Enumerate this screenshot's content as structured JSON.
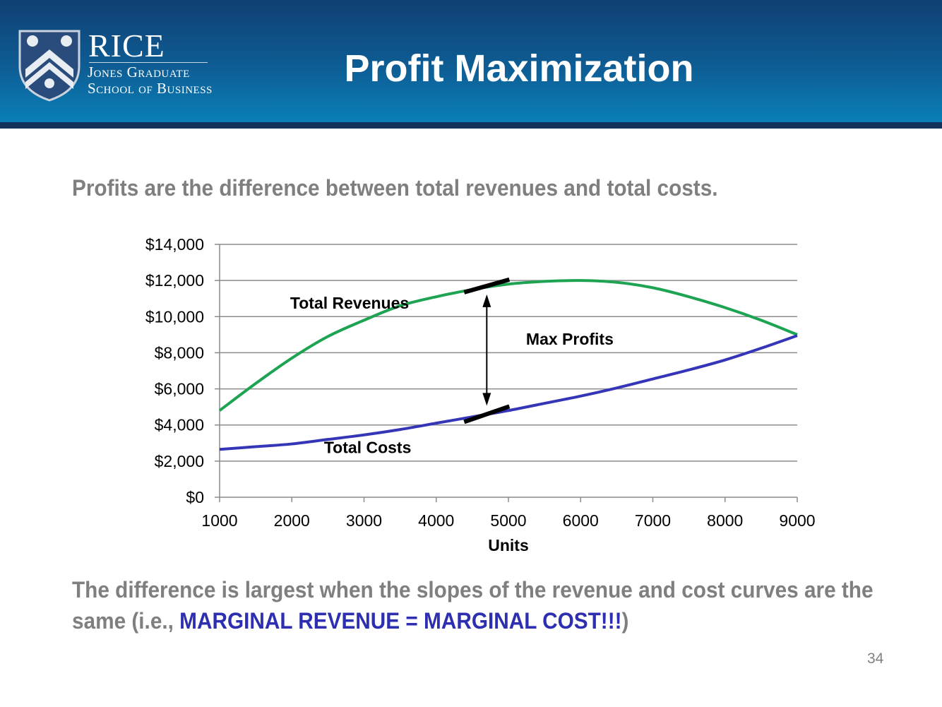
{
  "header": {
    "title": "Profit Maximization",
    "logo": {
      "word": "RICE",
      "line1": "Jones Graduate",
      "line2": "School of Business"
    }
  },
  "subtitle": "Profits are the difference between total revenues and total costs.",
  "conclusion": {
    "prefix": "The difference is largest when the slopes of the revenue and cost curves are the same (i.e., ",
    "highlight": "MARGINAL REVENUE = MARGINAL COST!!!",
    "suffix": ")"
  },
  "page_number": "34",
  "colors": {
    "revenue": "#1ea353",
    "cost": "#3535b8",
    "highlight": "#2d2fb0"
  },
  "chart_data": {
    "type": "line",
    "title": "",
    "xlabel": "Units",
    "ylabel": "",
    "x": [
      1000,
      1500,
      2000,
      2500,
      3000,
      3500,
      4000,
      4500,
      5000,
      5500,
      6000,
      6500,
      7000,
      7500,
      8000,
      8500,
      9000
    ],
    "series": [
      {
        "key": "revenue",
        "label": "Total Revenues",
        "color": "#1ea353",
        "values": [
          4800,
          6300,
          7700,
          8900,
          9800,
          10600,
          11100,
          11500,
          11800,
          11950,
          12000,
          11900,
          11600,
          11100,
          10500,
          9800,
          9000
        ]
      },
      {
        "key": "cost",
        "label": "Total Costs",
        "color": "#3535b8",
        "values": [
          2650,
          2800,
          2950,
          3200,
          3450,
          3750,
          4100,
          4450,
          4800,
          5200,
          5600,
          6050,
          6550,
          7050,
          7600,
          8250,
          8950
        ]
      }
    ],
    "xlim": [
      1000,
      9000
    ],
    "ylim": [
      0,
      14000
    ],
    "xticks": [
      1000,
      2000,
      3000,
      4000,
      5000,
      6000,
      7000,
      8000,
      9000
    ],
    "xtick_labels": [
      "1000",
      "2000",
      "3000",
      "4000",
      "5000",
      "6000",
      "7000",
      "8000",
      "9000"
    ],
    "yticks": [
      0,
      2000,
      4000,
      6000,
      8000,
      10000,
      12000,
      14000
    ],
    "ytick_labels": [
      "$0",
      "$2,000",
      "$4,000",
      "$6,000",
      "$8,000",
      "$10,000",
      "$12,000",
      "$14,000"
    ],
    "grid": true,
    "max_profit": {
      "x": 4700,
      "label": "Max Profits",
      "revenue": 11700,
      "cost": 4600
    },
    "annotations": [
      {
        "text": "Total Revenues",
        "x": 2800,
        "y": 10450
      },
      {
        "text": "Total Costs",
        "x": 3050,
        "y": 2450
      },
      {
        "text": "Max Profits",
        "x": 5850,
        "y": 8450
      }
    ]
  }
}
